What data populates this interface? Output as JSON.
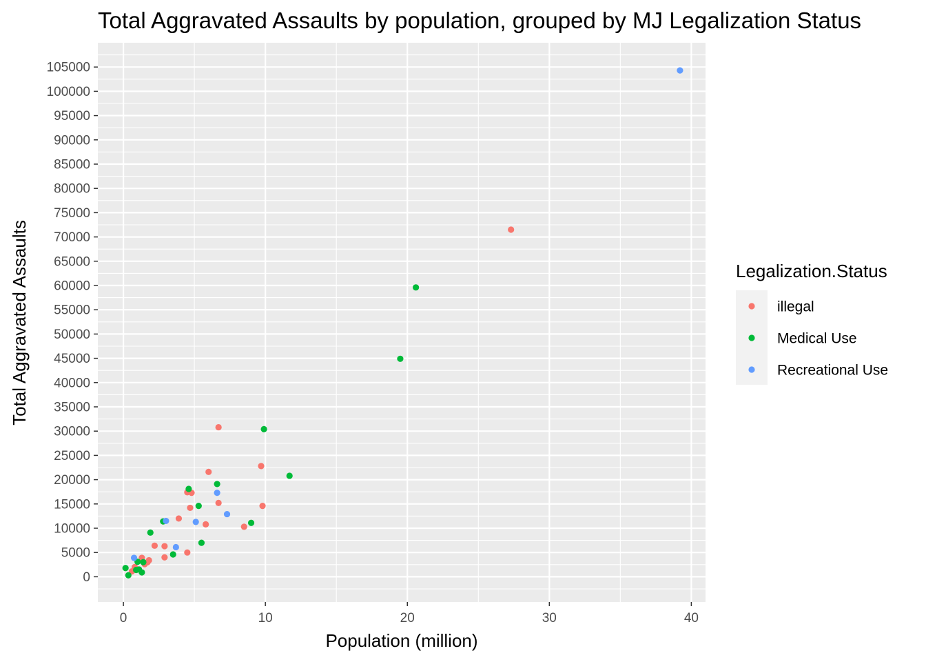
{
  "chart_data": {
    "type": "scatter",
    "title": "Total Aggravated Assaults by population, grouped by MJ Legalization Status",
    "xlabel": "Population (million)",
    "ylabel": "Total Aggravated Assaults",
    "xlim": [
      -1.8,
      41
    ],
    "ylim": [
      -5200,
      110000
    ],
    "xticks": [
      0,
      10,
      20,
      30,
      40
    ],
    "yticks": [
      0,
      5000,
      10000,
      15000,
      20000,
      25000,
      30000,
      35000,
      40000,
      45000,
      50000,
      55000,
      60000,
      65000,
      70000,
      75000,
      80000,
      85000,
      90000,
      95000,
      100000,
      105000
    ],
    "grid": true,
    "background": "#ebebeb",
    "legend": {
      "title": "Legalization.Status",
      "placement": "right"
    },
    "series": [
      {
        "name": "illegal",
        "color": "#F8766D",
        "points": [
          [
            0.6,
            1100
          ],
          [
            0.8,
            2000
          ],
          [
            1.3,
            3900
          ],
          [
            1.5,
            2600
          ],
          [
            1.7,
            3000
          ],
          [
            1.8,
            3400
          ],
          [
            2.2,
            6400
          ],
          [
            2.9,
            6300
          ],
          [
            2.9,
            4000
          ],
          [
            3.9,
            12000
          ],
          [
            4.5,
            5000
          ],
          [
            4.5,
            17400
          ],
          [
            4.7,
            14200
          ],
          [
            4.8,
            17300
          ],
          [
            5.8,
            10800
          ],
          [
            6.0,
            21600
          ],
          [
            6.7,
            15200
          ],
          [
            6.7,
            30800
          ],
          [
            8.5,
            10300
          ],
          [
            9.7,
            22800
          ],
          [
            9.8,
            14600
          ],
          [
            27.3,
            71500
          ]
        ]
      },
      {
        "name": "Medical Use",
        "color": "#00BA38",
        "points": [
          [
            0.15,
            1800
          ],
          [
            0.35,
            300
          ],
          [
            0.9,
            1400
          ],
          [
            1.0,
            3100
          ],
          [
            1.1,
            1500
          ],
          [
            1.3,
            900
          ],
          [
            1.4,
            3000
          ],
          [
            1.9,
            9100
          ],
          [
            2.8,
            11400
          ],
          [
            3.5,
            4600
          ],
          [
            4.6,
            18100
          ],
          [
            5.3,
            14600
          ],
          [
            5.5,
            7000
          ],
          [
            6.6,
            19100
          ],
          [
            9.0,
            11100
          ],
          [
            9.9,
            30400
          ],
          [
            11.7,
            20800
          ],
          [
            19.5,
            44900
          ],
          [
            20.6,
            59600
          ]
        ]
      },
      {
        "name": "Recreational Use",
        "color": "#619CFF",
        "points": [
          [
            0.75,
            3900
          ],
          [
            3.0,
            11500
          ],
          [
            3.7,
            6100
          ],
          [
            5.1,
            11300
          ],
          [
            6.6,
            17300
          ],
          [
            7.3,
            12900
          ],
          [
            39.2,
            104300
          ]
        ]
      }
    ]
  }
}
